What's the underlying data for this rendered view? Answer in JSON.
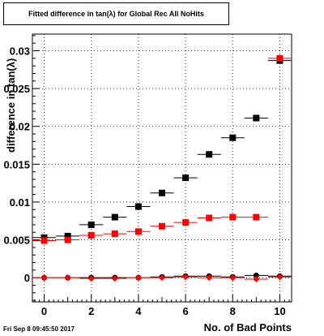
{
  "chart_data": {
    "type": "scatter",
    "title": "Fitted difference in tan(λ) for Global Rec All NoHits",
    "xlabel": "No. of Bad Points",
    "ylabel": "difference in tan(λ)",
    "xlim": [
      -0.5,
      10.5
    ],
    "ylim": [
      -0.0032,
      0.0322
    ],
    "x_ticks": [
      "0",
      "2",
      "4",
      "6",
      "8",
      "10"
    ],
    "y_ticks": [
      "0",
      "0.005",
      "0.01",
      "0.015",
      "0.02",
      "0.025",
      "0.03"
    ],
    "grid": true,
    "series": [
      {
        "marker": "square",
        "color": "#000000",
        "x": [
          0,
          1,
          2,
          3,
          4,
          5,
          6,
          7,
          8,
          9,
          10
        ],
        "y": [
          0.0053,
          0.0055,
          0.007,
          0.008,
          0.0094,
          0.0112,
          0.0132,
          0.0163,
          0.0185,
          0.0211,
          0.0287
        ]
      },
      {
        "marker": "square",
        "color": "#ff0000",
        "x": [
          0,
          1,
          2,
          3,
          4,
          5,
          6,
          7,
          8,
          9,
          10
        ],
        "y": [
          0.0049,
          0.005,
          0.0056,
          0.0058,
          0.0061,
          0.0068,
          0.0073,
          0.0079,
          0.008,
          0.008,
          0.029
        ]
      },
      {
        "marker": "circle",
        "color": "#000000",
        "x": [
          0,
          1,
          2,
          3,
          4,
          5,
          6,
          7,
          8,
          9,
          10
        ],
        "y": [
          0.0,
          0.0,
          0.0,
          0.0,
          0.0,
          0.0001,
          0.0002,
          0.0002,
          0.0001,
          0.0003,
          0.0002
        ]
      },
      {
        "marker": "diamond",
        "color": "#ff0000",
        "x": [
          0,
          1,
          2,
          3,
          4,
          5,
          6,
          7,
          8,
          9,
          10
        ],
        "y": [
          0.0,
          0.0,
          -0.0001,
          -0.0001,
          0.0,
          0.0,
          0.0001,
          0.0,
          0.0,
          -0.0002,
          0.0001
        ]
      }
    ]
  },
  "footer": {
    "date": "Fri Sep  8 09:45:50 2017"
  }
}
